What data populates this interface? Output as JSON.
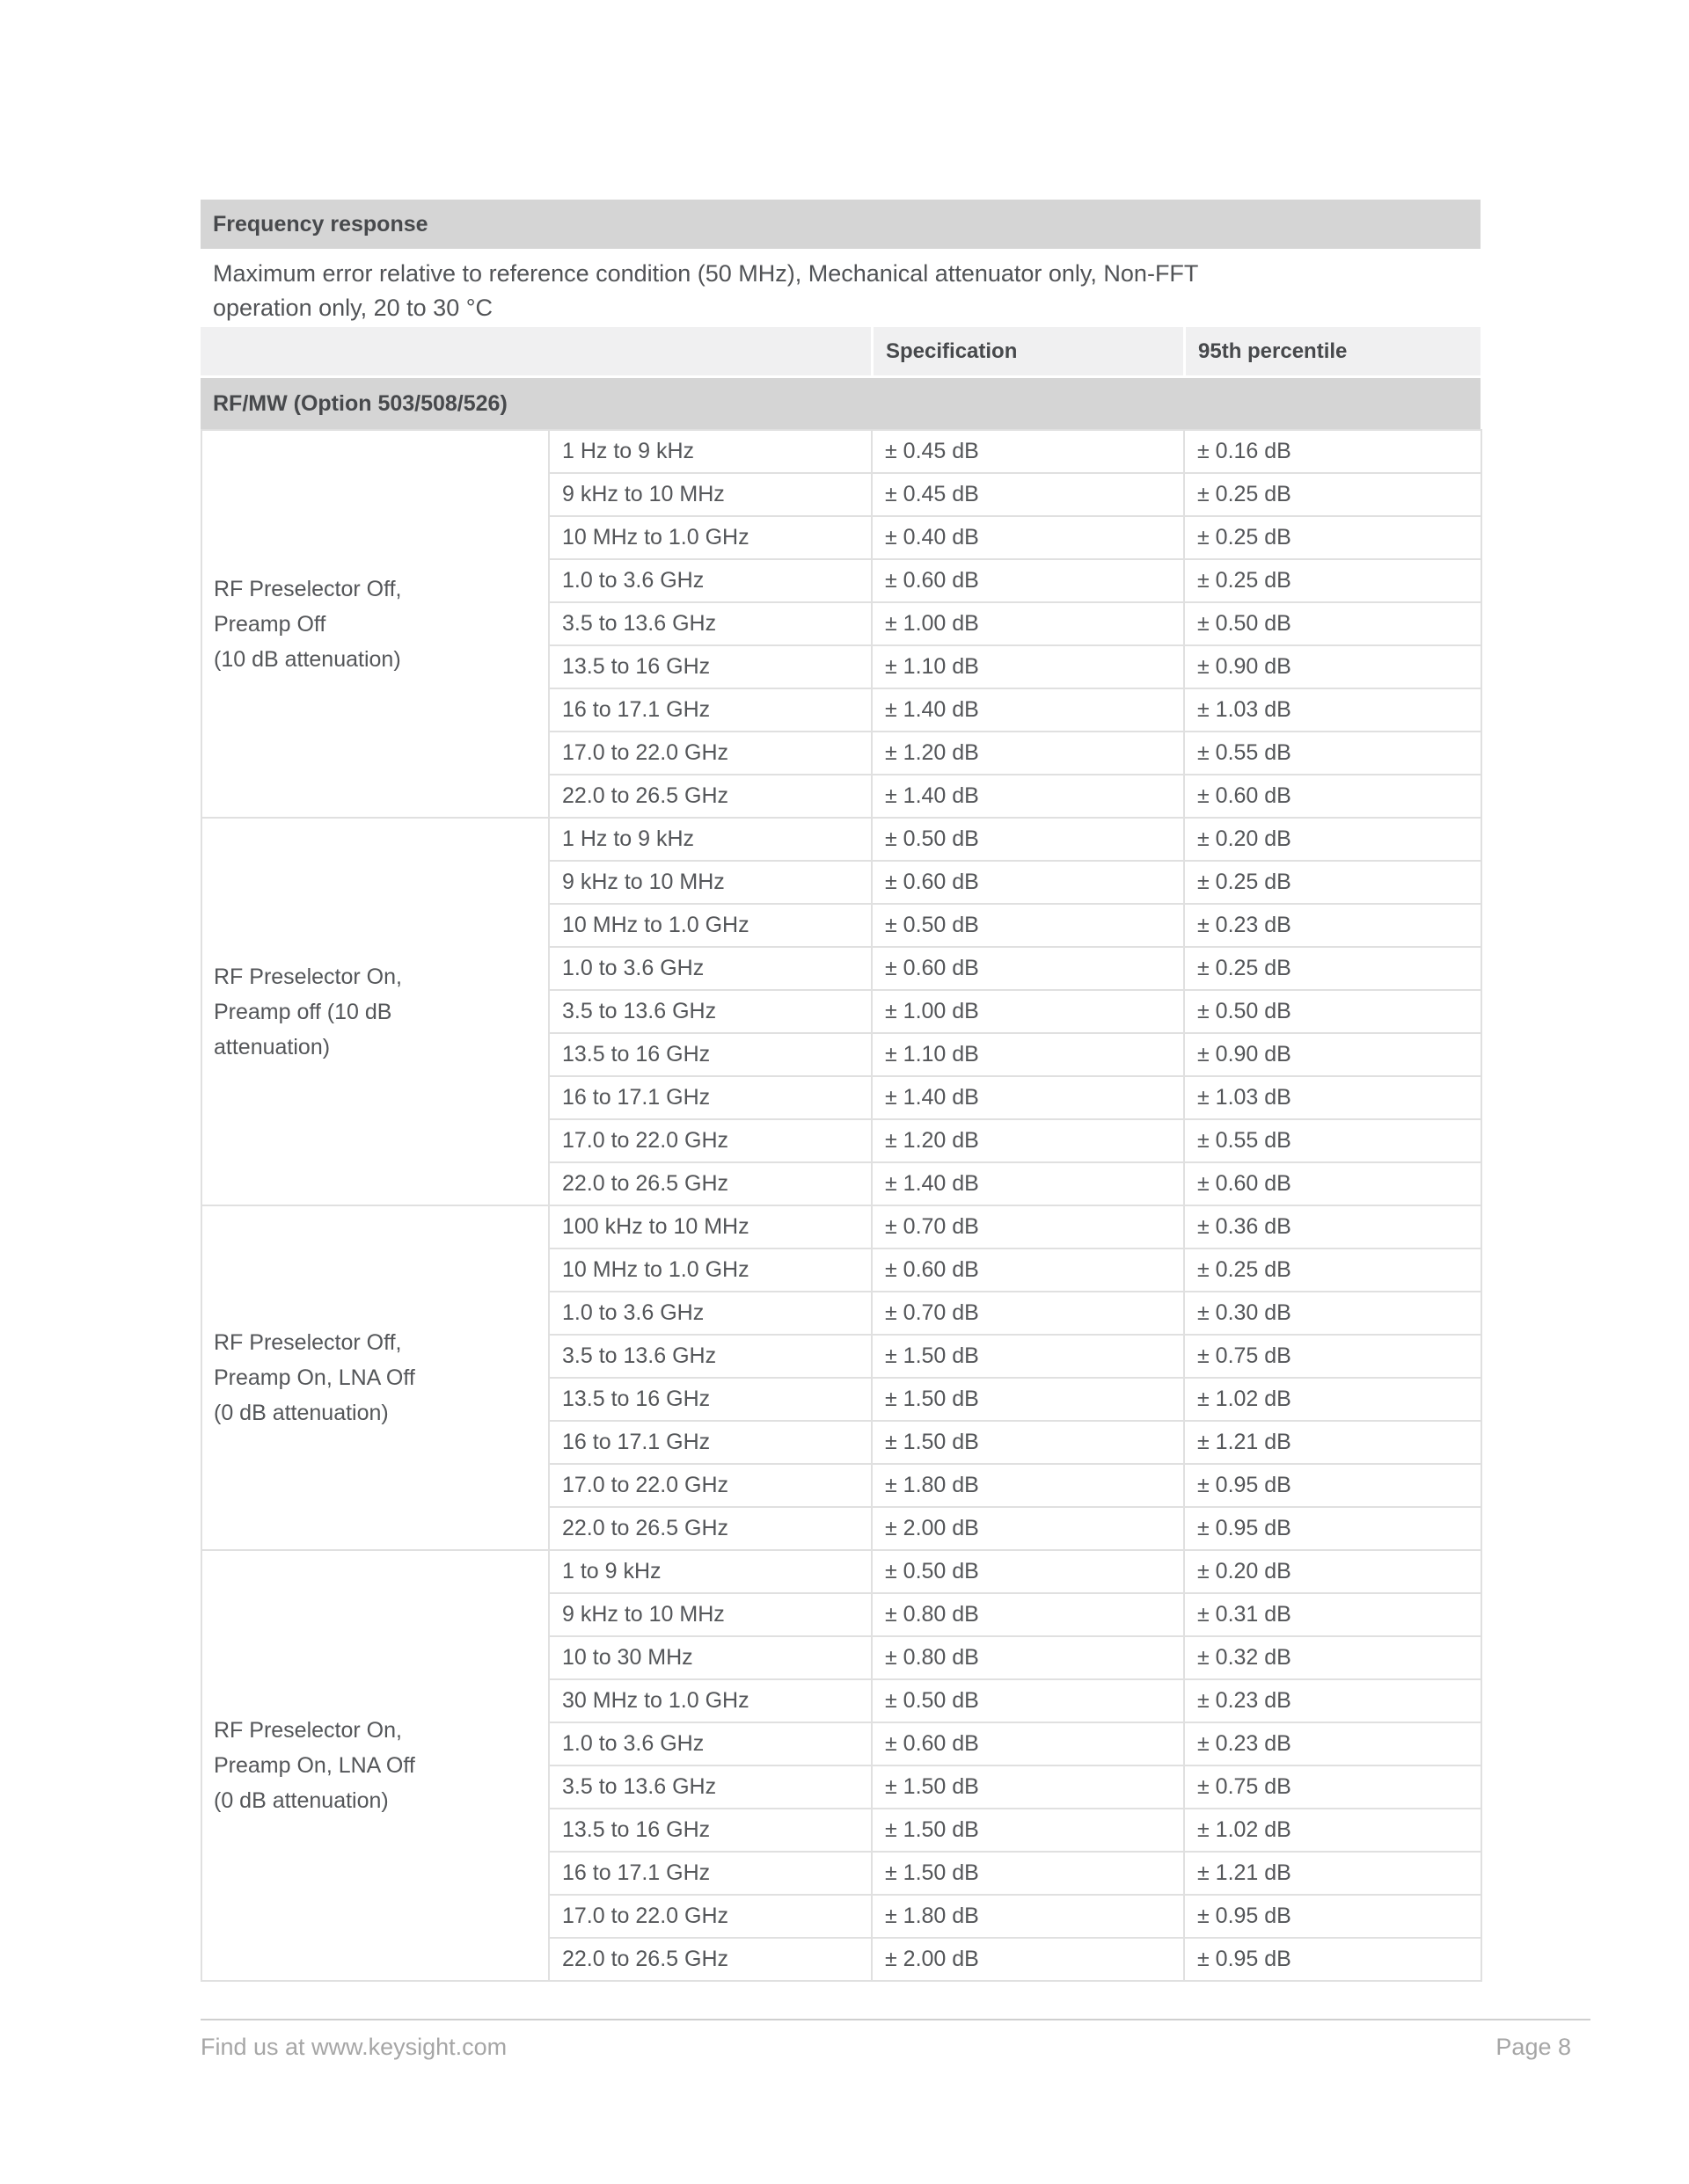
{
  "table": {
    "title": "Frequency response",
    "subtitle_line1": "Maximum error relative to reference condition (50 MHz), Mechanical attenuator only, Non-FFT",
    "subtitle_line2": "operation only, 20 to 30 °C",
    "col_spec": "Specification",
    "col_p95": "95th percentile",
    "section": "RF/MW (Option 503/508/526)"
  },
  "colors": {
    "bar_background": "#d5d5d5",
    "header_row_background": "#f0f0f1",
    "row_border": "#e0e0e0",
    "body_text": "#545659",
    "footer_text": "#a6a6a6"
  },
  "groups": [
    {
      "label_lines": [
        "RF Preselector Off,",
        "Preamp Off",
        "(10 dB attenuation)"
      ],
      "rows": [
        {
          "range": "1 Hz to 9 kHz",
          "spec": "± 0.45 dB",
          "p95": "± 0.16 dB"
        },
        {
          "range": "9 kHz to 10 MHz",
          "spec": "± 0.45 dB",
          "p95": "± 0.25 dB"
        },
        {
          "range": "10 MHz to 1.0 GHz",
          "spec": "± 0.40 dB",
          "p95": "± 0.25 dB"
        },
        {
          "range": "1.0 to 3.6 GHz",
          "spec": "± 0.60 dB",
          "p95": "± 0.25 dB"
        },
        {
          "range": "3.5 to 13.6 GHz",
          "spec": "± 1.00 dB",
          "p95": "± 0.50 dB"
        },
        {
          "range": "13.5 to 16 GHz",
          "spec": "± 1.10 dB",
          "p95": "± 0.90 dB"
        },
        {
          "range": "16 to 17.1 GHz",
          "spec": "± 1.40 dB",
          "p95": "± 1.03 dB"
        },
        {
          "range": "17.0 to 22.0 GHz",
          "spec": "± 1.20 dB",
          "p95": "± 0.55 dB"
        },
        {
          "range": "22.0 to 26.5 GHz",
          "spec": "± 1.40 dB",
          "p95": "± 0.60 dB"
        }
      ]
    },
    {
      "label_lines": [
        "RF Preselector On,",
        "Preamp off (10 dB",
        "attenuation)"
      ],
      "rows": [
        {
          "range": "1 Hz to 9 kHz",
          "spec": "± 0.50 dB",
          "p95": "± 0.20 dB"
        },
        {
          "range": "9 kHz to 10 MHz",
          "spec": "± 0.60 dB",
          "p95": "± 0.25 dB"
        },
        {
          "range": "10 MHz to 1.0 GHz",
          "spec": "± 0.50 dB",
          "p95": "± 0.23 dB"
        },
        {
          "range": "1.0 to 3.6 GHz",
          "spec": "± 0.60 dB",
          "p95": "± 0.25 dB"
        },
        {
          "range": "3.5 to 13.6 GHz",
          "spec": "± 1.00 dB",
          "p95": "± 0.50 dB"
        },
        {
          "range": "13.5 to 16 GHz",
          "spec": "± 1.10 dB",
          "p95": "± 0.90 dB"
        },
        {
          "range": "16 to 17.1 GHz",
          "spec": "± 1.40 dB",
          "p95": "± 1.03 dB"
        },
        {
          "range": "17.0 to 22.0 GHz",
          "spec": "± 1.20 dB",
          "p95": "± 0.55 dB"
        },
        {
          "range": "22.0 to 26.5 GHz",
          "spec": "± 1.40 dB",
          "p95": "± 0.60 dB"
        }
      ]
    },
    {
      "label_lines": [
        "RF Preselector Off,",
        "Preamp On, LNA Off",
        "(0 dB attenuation)"
      ],
      "rows": [
        {
          "range": "100 kHz to 10 MHz",
          "spec": "± 0.70 dB",
          "p95": "± 0.36 dB"
        },
        {
          "range": "10 MHz to 1.0 GHz",
          "spec": "± 0.60 dB",
          "p95": "± 0.25 dB"
        },
        {
          "range": "1.0 to 3.6 GHz",
          "spec": "± 0.70 dB",
          "p95": "± 0.30 dB"
        },
        {
          "range": "3.5 to 13.6 GHz",
          "spec": "± 1.50 dB",
          "p95": "± 0.75 dB"
        },
        {
          "range": "13.5 to 16 GHz",
          "spec": "± 1.50 dB",
          "p95": "± 1.02 dB"
        },
        {
          "range": "16 to 17.1 GHz",
          "spec": "± 1.50 dB",
          "p95": "± 1.21 dB"
        },
        {
          "range": "17.0 to 22.0 GHz",
          "spec": "± 1.80 dB",
          "p95": "± 0.95 dB"
        },
        {
          "range": "22.0 to 26.5 GHz",
          "spec": "± 2.00 dB",
          "p95": "± 0.95 dB"
        }
      ]
    },
    {
      "label_lines": [
        "RF Preselector On,",
        "Preamp On, LNA Off",
        "(0 dB attenuation)"
      ],
      "rows": [
        {
          "range": "1 to 9 kHz",
          "spec": "± 0.50 dB",
          "p95": "± 0.20 dB"
        },
        {
          "range": "9 kHz to 10 MHz",
          "spec": "± 0.80 dB",
          "p95": "± 0.31 dB"
        },
        {
          "range": "10 to 30 MHz",
          "spec": "± 0.80 dB",
          "p95": "± 0.32 dB"
        },
        {
          "range": "30 MHz to 1.0 GHz",
          "spec": "± 0.50 dB",
          "p95": "± 0.23 dB"
        },
        {
          "range": "1.0 to 3.6 GHz",
          "spec": "± 0.60 dB",
          "p95": "± 0.23 dB"
        },
        {
          "range": "3.5 to 13.6 GHz",
          "spec": "± 1.50 dB",
          "p95": "± 0.75 dB"
        },
        {
          "range": "13.5 to 16 GHz",
          "spec": "± 1.50 dB",
          "p95": "± 1.02 dB"
        },
        {
          "range": "16 to 17.1 GHz",
          "spec": "± 1.50 dB",
          "p95": "± 1.21 dB"
        },
        {
          "range": "17.0 to 22.0 GHz",
          "spec": "± 1.80 dB",
          "p95": "± 0.95 dB"
        },
        {
          "range": "22.0 to 26.5 GHz",
          "spec": "± 2.00 dB",
          "p95": "± 0.95 dB"
        }
      ]
    }
  ],
  "footer": {
    "left": "Find us at www.keysight.com",
    "right": "Page 8"
  }
}
